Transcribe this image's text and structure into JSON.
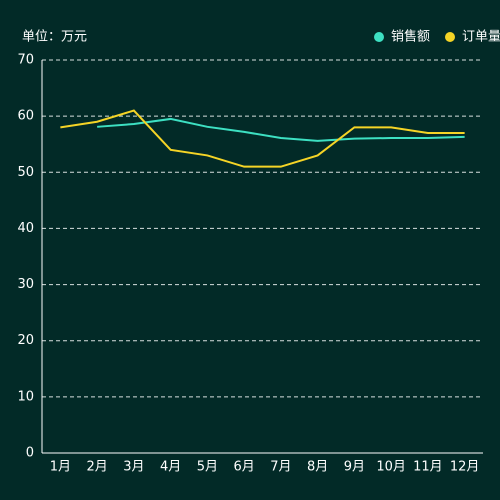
{
  "chart_data": {
    "type": "line",
    "unit_label": "单位：万元",
    "categories": [
      "1月",
      "2月",
      "3月",
      "4月",
      "5月",
      "6月",
      "7月",
      "8月",
      "9月",
      "10月",
      "11月",
      "12月"
    ],
    "series": [
      {
        "name": "销售额",
        "color": "#3de0c2",
        "values": [
          null,
          58.1,
          58.6,
          59.5,
          58.1,
          57.2,
          56.1,
          55.6,
          56.0,
          56.1,
          56.1,
          56.3
        ]
      },
      {
        "name": "订单量",
        "color": "#f5d426",
        "values": [
          58,
          59,
          61,
          54,
          53,
          51,
          51,
          53,
          58,
          58,
          57,
          57
        ]
      }
    ],
    "ylim": [
      0,
      70
    ],
    "yticks": [
      0,
      10,
      20,
      30,
      40,
      50,
      60,
      70
    ],
    "grid": true
  }
}
